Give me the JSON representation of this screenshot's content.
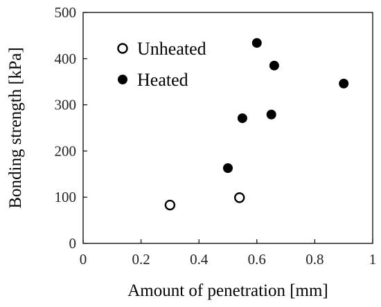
{
  "chart_data": {
    "type": "scatter",
    "title": "",
    "xlabel": "Amount of penetration [mm]",
    "ylabel": "Bonding strength [kPa]",
    "xlim": [
      0,
      1
    ],
    "ylim": [
      0,
      500
    ],
    "xticks": [
      0,
      0.2,
      0.4,
      0.6,
      0.8,
      1
    ],
    "xtick_labels": [
      "0",
      "0.2",
      "0.4",
      "0.6",
      "0.8",
      "1"
    ],
    "yticks": [
      0,
      100,
      200,
      300,
      400,
      500
    ],
    "ytick_labels": [
      "0",
      "100",
      "200",
      "300",
      "400",
      "500"
    ],
    "grid": false,
    "legend_position": "top-left",
    "series": [
      {
        "name": "Unheated",
        "marker": "open-circle",
        "color": "#000000",
        "points": [
          {
            "x": 0.3,
            "y": 83
          },
          {
            "x": 0.54,
            "y": 99
          }
        ]
      },
      {
        "name": "Heated",
        "marker": "filled-circle",
        "color": "#000000",
        "points": [
          {
            "x": 0.5,
            "y": 163
          },
          {
            "x": 0.55,
            "y": 271
          },
          {
            "x": 0.6,
            "y": 434
          },
          {
            "x": 0.65,
            "y": 279
          },
          {
            "x": 0.66,
            "y": 385
          },
          {
            "x": 0.9,
            "y": 346
          }
        ]
      }
    ]
  }
}
